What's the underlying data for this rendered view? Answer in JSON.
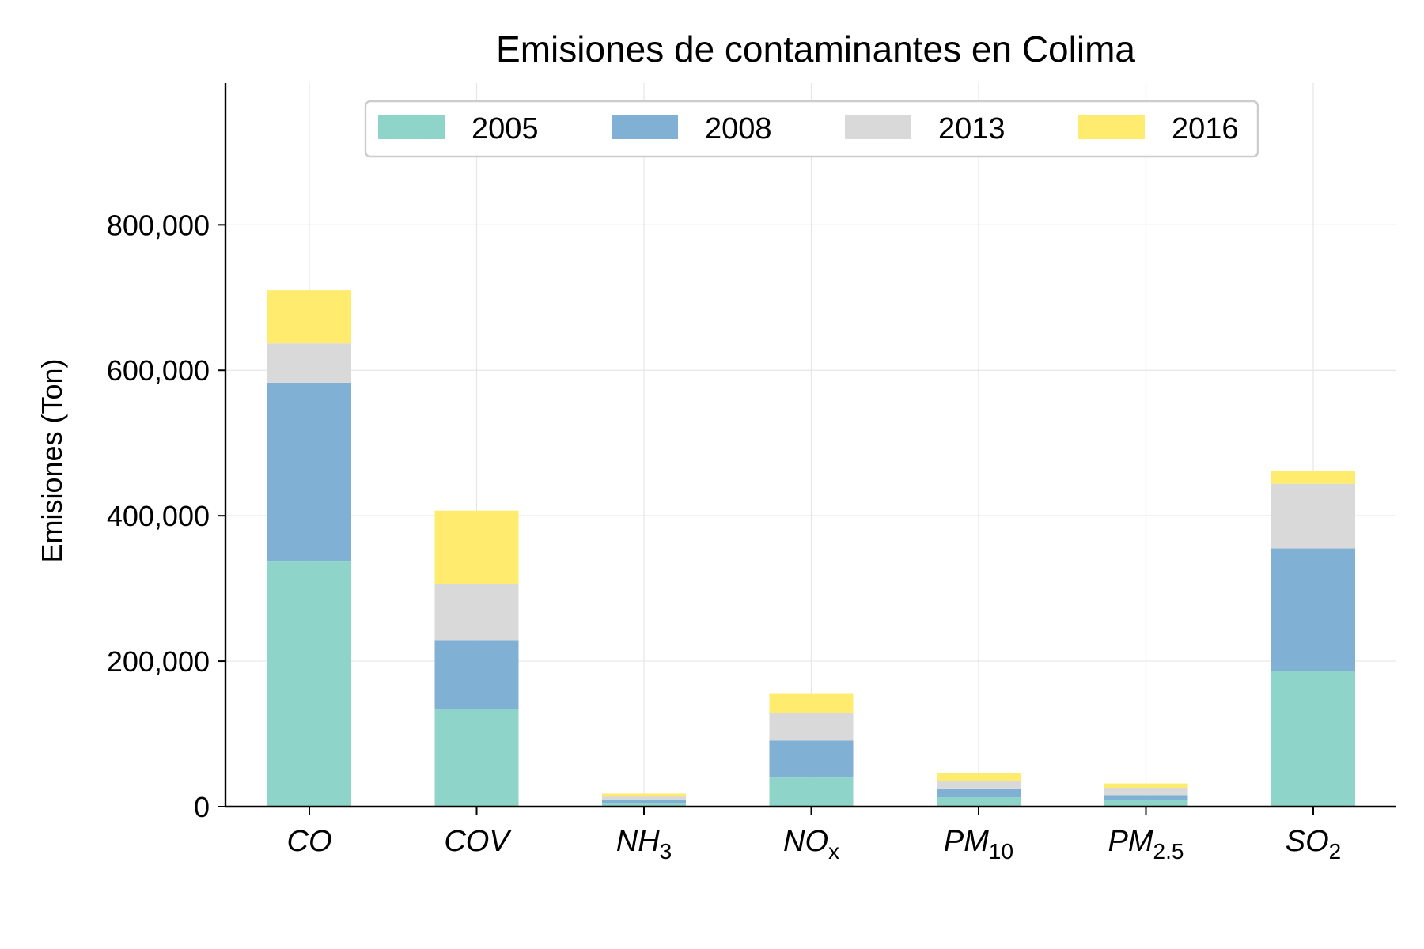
{
  "chart_data": {
    "type": "bar",
    "stacked": true,
    "title": "Emisiones de contaminantes en Colima",
    "ylabel": "Emisiones (Ton)",
    "xlabel": "",
    "categories": [
      {
        "base": "CO",
        "sub": ""
      },
      {
        "base": "COV",
        "sub": ""
      },
      {
        "base": "NH",
        "sub": "3"
      },
      {
        "base": "NO",
        "sub": "x"
      },
      {
        "base": "PM",
        "sub": "10"
      },
      {
        "base": "PM",
        "sub": "2.5"
      },
      {
        "base": "SO",
        "sub": "2"
      }
    ],
    "series": [
      {
        "name": "2005",
        "color": "#8fd4c8",
        "values": [
          337000,
          134000,
          4000,
          40000,
          13000,
          9000,
          186000
        ]
      },
      {
        "name": "2008",
        "color": "#80b0d3",
        "values": [
          246000,
          95000,
          5000,
          51000,
          11000,
          7000,
          169000
        ]
      },
      {
        "name": "2013",
        "color": "#d9d9d9",
        "values": [
          54000,
          77000,
          5000,
          38000,
          11000,
          10000,
          89000
        ]
      },
      {
        "name": "2016",
        "color": "#ffec6e",
        "values": [
          73000,
          101000,
          4000,
          27000,
          11000,
          6000,
          18000
        ]
      }
    ],
    "yticks": [
      0,
      200000,
      400000,
      600000,
      800000
    ],
    "ytick_labels": [
      "0",
      "200,000",
      "400,000",
      "600,000",
      "800,000"
    ],
    "ylim": [
      0,
      995000
    ],
    "grid": true,
    "legend_position": "top-center"
  }
}
